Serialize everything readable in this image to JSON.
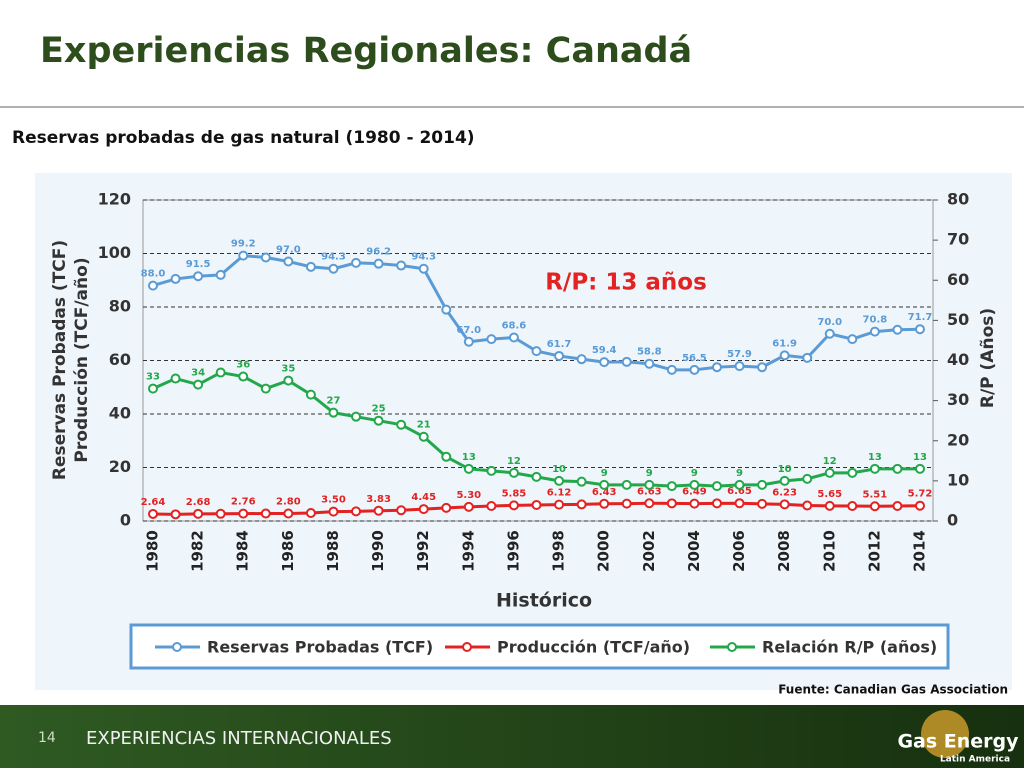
{
  "title": "Experiencias Regionales: Canadá",
  "subtitle": "Reservas probadas de gas natural (1980 - 2014)",
  "source": "Fuente: Canadian Gas Association",
  "footer": {
    "section": "EXPERIENCIAS INTERNACIONALES",
    "page": "14",
    "logo": "Gas Energy",
    "logo_sub": "Latin America"
  },
  "chart_data": {
    "type": "line",
    "x_label": "Histórico",
    "y_label": [
      "Reservas Probadas (TCF)",
      "Producción (TCF/año)"
    ],
    "y2_label": "R/P (Años)",
    "annotation": "R/P: 13 años",
    "categories": [
      "1980",
      null,
      "1982",
      null,
      "1984",
      null,
      "1986",
      null,
      "1988",
      null,
      "1990",
      null,
      "1992",
      null,
      "1994",
      null,
      "1996",
      null,
      "1998",
      null,
      "2000",
      null,
      "2002",
      null,
      "2004",
      null,
      "2006",
      null,
      "2008",
      null,
      "2010",
      null,
      "2012",
      null,
      "2014"
    ],
    "ylim": [
      0,
      120
    ],
    "yticks": [
      0,
      20,
      40,
      60,
      80,
      100,
      120
    ],
    "y2lim": [
      0,
      80
    ],
    "y2ticks": [
      0,
      10,
      20,
      30,
      40,
      50,
      60,
      70,
      80
    ],
    "grid": true,
    "series": [
      {
        "name": "Reservas Probadas (TCF)",
        "color": "#5b9bd5",
        "values": [
          88.0,
          90.5,
          91.5,
          92.0,
          99.2,
          98.5,
          97.0,
          95.0,
          94.3,
          96.5,
          96.2,
          95.5,
          94.3,
          79.0,
          67.0,
          68.0,
          68.6,
          63.5,
          61.7,
          60.5,
          59.4,
          59.5,
          58.8,
          56.5,
          56.5,
          57.5,
          57.9,
          57.5,
          61.9,
          61.0,
          70.0,
          68.0,
          70.8,
          71.5,
          71.7
        ],
        "value_labels": [
          "88.0",
          null,
          "91.5",
          null,
          "99.2",
          null,
          "97.0",
          null,
          "94.3",
          null,
          "96.2",
          null,
          "94.3",
          null,
          "67.0",
          null,
          "68.6",
          null,
          "61.7",
          null,
          "59.4",
          null,
          "58.8",
          null,
          "56.5",
          null,
          "57.9",
          null,
          "61.9",
          null,
          "70.0",
          null,
          "70.8",
          null,
          "71.7"
        ]
      },
      {
        "name": "Producción (TCF/año)",
        "color": "#e32222",
        "values": [
          2.64,
          2.5,
          2.68,
          2.7,
          2.76,
          2.8,
          2.8,
          3.0,
          3.5,
          3.6,
          3.83,
          4.0,
          4.45,
          4.9,
          5.3,
          5.6,
          5.85,
          6.0,
          6.12,
          6.2,
          6.43,
          6.5,
          6.63,
          6.6,
          6.49,
          6.6,
          6.65,
          6.4,
          6.23,
          5.8,
          5.65,
          5.6,
          5.51,
          5.6,
          5.72
        ],
        "value_labels": [
          "2.64",
          null,
          "2.68",
          null,
          "2.76",
          null,
          "2.80",
          null,
          "3.50",
          null,
          "3.83",
          null,
          "4.45",
          null,
          "5.30",
          null,
          "5.85",
          null,
          "6.12",
          null,
          "6.43",
          null,
          "6.63",
          null,
          "6.49",
          null,
          "6.65",
          null,
          "6.23",
          null,
          "5.65",
          null,
          "5.51",
          null,
          "5.72"
        ]
      },
      {
        "name": "Relación R/P (años)",
        "color": "#22a84a",
        "axis": "y2",
        "values": [
          33,
          35.5,
          34,
          37,
          36,
          33,
          35,
          31.5,
          27,
          26,
          25,
          24,
          21,
          16,
          13,
          12.5,
          12,
          11,
          10,
          9.8,
          9,
          9,
          9,
          8.7,
          9,
          8.7,
          9,
          9,
          10,
          10.5,
          12,
          12,
          13,
          13,
          13
        ],
        "value_labels": [
          "33",
          null,
          "34",
          null,
          "36",
          null,
          "35",
          null,
          "27",
          null,
          "25",
          null,
          "21",
          null,
          "13",
          null,
          "12",
          null,
          "10",
          null,
          "9",
          null,
          "9",
          null,
          "9",
          null,
          "9",
          null,
          "10",
          null,
          "12",
          null,
          "13",
          null,
          "13"
        ]
      }
    ]
  }
}
